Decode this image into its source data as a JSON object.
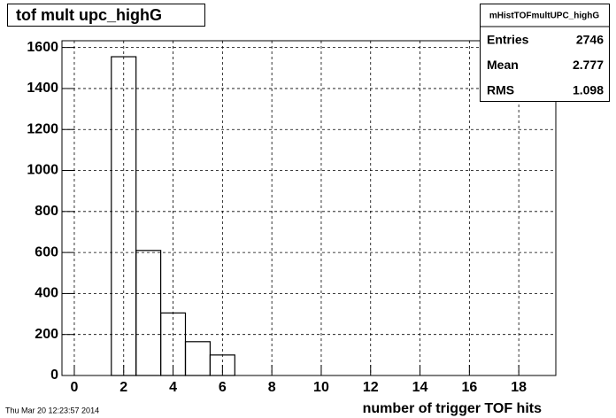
{
  "chart_data": {
    "type": "histogram",
    "title": "tof mult upc_highG",
    "x_label": "number of trigger TOF hits",
    "timestamp": "Thu Mar 20 12:23:57 2014",
    "bins": [
      -0.5,
      0.5,
      1.5,
      2.5,
      3.5,
      4.5,
      5.5,
      6.5,
      7.5,
      8.5,
      9.5,
      10.5,
      11.5,
      12.5,
      13.5,
      14.5,
      15.5,
      16.5,
      17.5,
      18.5,
      19.5
    ],
    "counts": [
      0,
      0,
      1555,
      610,
      305,
      165,
      100,
      0,
      0,
      0,
      0,
      0,
      0,
      0,
      0,
      0,
      0,
      0,
      0,
      0
    ],
    "color": "#000000",
    "xlim": [
      -0.5,
      19.5
    ],
    "xticks": [
      0,
      2,
      4,
      6,
      8,
      10,
      12,
      14,
      16,
      18
    ],
    "ylim": [
      0,
      1633
    ],
    "yticks": [
      0,
      200,
      400,
      600,
      800,
      1000,
      1200,
      1400,
      1600
    ],
    "grid": true,
    "stats": {
      "title": "mHistTOFmultUPC_highG",
      "rows": [
        {
          "label": "Entries",
          "value": 2746
        },
        {
          "label": "Mean",
          "value": 2.777
        },
        {
          "label": "RMS",
          "value": 1.098
        }
      ]
    }
  }
}
